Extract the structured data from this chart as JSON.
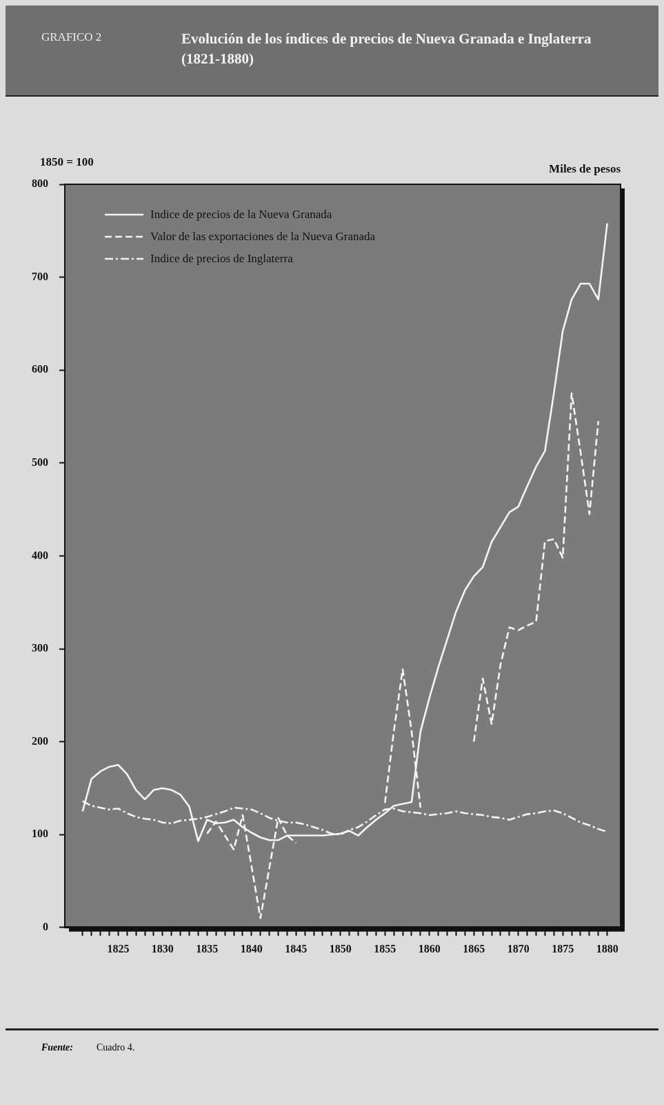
{
  "chart_data": {
    "type": "line",
    "title": "Evolución de los índices de precios de Nueva Granada e Inglaterra (1821-1880)",
    "ylabel": "1850 = 100",
    "annotations": [
      "GRAFICO 2",
      "Miles de pesos",
      "Fuente:",
      "Cuadro 4."
    ],
    "x": [
      1821,
      1822,
      1823,
      1824,
      1825,
      1826,
      1827,
      1828,
      1829,
      1830,
      1831,
      1832,
      1833,
      1834,
      1835,
      1836,
      1837,
      1838,
      1839,
      1840,
      1841,
      1842,
      1843,
      1844,
      1845,
      1846,
      1847,
      1848,
      1849,
      1850,
      1851,
      1852,
      1853,
      1854,
      1855,
      1856,
      1857,
      1858,
      1859,
      1860,
      1861,
      1862,
      1863,
      1864,
      1865,
      1866,
      1867,
      1868,
      1869,
      1870,
      1871,
      1872,
      1873,
      1874,
      1875,
      1876,
      1877,
      1878,
      1879,
      1880
    ],
    "series": [
      {
        "name": "Indice de precios de la Nueva Granada",
        "color": "#f4f4f4",
        "line_style": "solid",
        "values": [
          125,
          160,
          168,
          173,
          175,
          165,
          148,
          138,
          148,
          150,
          148,
          143,
          130,
          93,
          116,
          112,
          113,
          116,
          108,
          102,
          97,
          94,
          94,
          99,
          99,
          99,
          99,
          99,
          100,
          101,
          104,
          99,
          108,
          116,
          123,
          131,
          133,
          135,
          211,
          247,
          280,
          310,
          340,
          363,
          378,
          388,
          415,
          431,
          447,
          453,
          475,
          496,
          513,
          575,
          642,
          676,
          693,
          693,
          676,
          758
        ]
      },
      {
        "name": "Valor de las exportaciones de la Nueva Granada",
        "color": "#f4f4f4",
        "line_style": "dashed",
        "values": [
          null,
          null,
          null,
          null,
          null,
          null,
          null,
          null,
          null,
          null,
          null,
          null,
          null,
          null,
          101,
          114,
          99,
          84,
          121,
          66,
          10,
          64,
          118,
          99,
          91,
          null,
          null,
          null,
          null,
          null,
          null,
          null,
          null,
          null,
          134,
          211,
          278,
          211,
          129,
          null,
          null,
          null,
          null,
          null,
          200,
          268,
          219,
          283,
          323,
          320,
          325,
          329,
          416,
          418,
          398,
          575,
          512,
          445,
          545,
          null
        ]
      },
      {
        "name": "Indice de precios de Inglaterra",
        "color": "#f4f4f4",
        "line_style": "dashdot",
        "values": [
          136,
          131,
          129,
          127,
          128,
          123,
          119,
          117,
          116,
          113,
          112,
          115,
          116,
          117,
          119,
          122,
          125,
          129,
          128,
          127,
          123,
          118,
          115,
          113,
          113,
          111,
          108,
          105,
          101,
          100,
          105,
          108,
          114,
          121,
          127,
          128,
          125,
          124,
          123,
          121,
          122,
          123,
          125,
          123,
          122,
          121,
          119,
          118,
          116,
          119,
          122,
          123,
          125,
          126,
          123,
          118,
          113,
          110,
          106,
          103
        ]
      }
    ],
    "xlim": [
      1819,
      1881.5
    ],
    "xticks": [
      {
        "value": 1821,
        "label": null
      },
      {
        "value": 1822,
        "label": null
      },
      {
        "value": 1823,
        "label": null
      },
      {
        "value": 1824,
        "label": null
      },
      1825,
      {
        "value": 1826,
        "label": null
      },
      {
        "value": 1827,
        "label": null
      },
      {
        "value": 1828,
        "label": null
      },
      {
        "value": 1829,
        "label": null
      },
      1830,
      {
        "value": 1831,
        "label": null
      },
      {
        "value": 1832,
        "label": null
      },
      {
        "value": 1833,
        "label": null
      },
      {
        "value": 1834,
        "label": null
      },
      1835,
      {
        "value": 1836,
        "label": null
      },
      {
        "value": 1837,
        "label": null
      },
      {
        "value": 1838,
        "label": null
      },
      {
        "value": 1839,
        "label": null
      },
      1840,
      {
        "value": 1841,
        "label": null
      },
      {
        "value": 1842,
        "label": null
      },
      {
        "value": 1843,
        "label": null
      },
      {
        "value": 1844,
        "label": null
      },
      1845,
      {
        "value": 1846,
        "label": null
      },
      {
        "value": 1847,
        "label": null
      },
      {
        "value": 1848,
        "label": null
      },
      {
        "value": 1849,
        "label": null
      },
      1850,
      {
        "value": 1851,
        "label": null
      },
      {
        "value": 1852,
        "label": null
      },
      {
        "value": 1853,
        "label": null
      },
      {
        "value": 1854,
        "label": null
      },
      1855,
      {
        "value": 1856,
        "label": null
      },
      {
        "value": 1857,
        "label": null
      },
      {
        "value": 1858,
        "label": null
      },
      {
        "value": 1859,
        "label": null
      },
      1860,
      {
        "value": 1861,
        "label": null
      },
      {
        "value": 1862,
        "label": null
      },
      {
        "value": 1863,
        "label": null
      },
      {
        "value": 1864,
        "label": null
      },
      1865,
      {
        "value": 1866,
        "label": null
      },
      {
        "value": 1867,
        "label": null
      },
      {
        "value": 1868,
        "label": null
      },
      {
        "value": 1869,
        "label": null
      },
      1870,
      {
        "value": 1871,
        "label": null
      },
      {
        "value": 1872,
        "label": null
      },
      {
        "value": 1873,
        "label": null
      },
      {
        "value": 1874,
        "label": null
      },
      1875,
      {
        "value": 1876,
        "label": null
      },
      {
        "value": 1877,
        "label": null
      },
      {
        "value": 1878,
        "label": null
      },
      {
        "value": 1879,
        "label": null
      },
      1880
    ],
    "ylim": [
      0,
      800
    ],
    "yticks": [
      0,
      100,
      200,
      300,
      400,
      500,
      600,
      700,
      800
    ],
    "grid": false,
    "legend": "top left",
    "marker": "none"
  }
}
